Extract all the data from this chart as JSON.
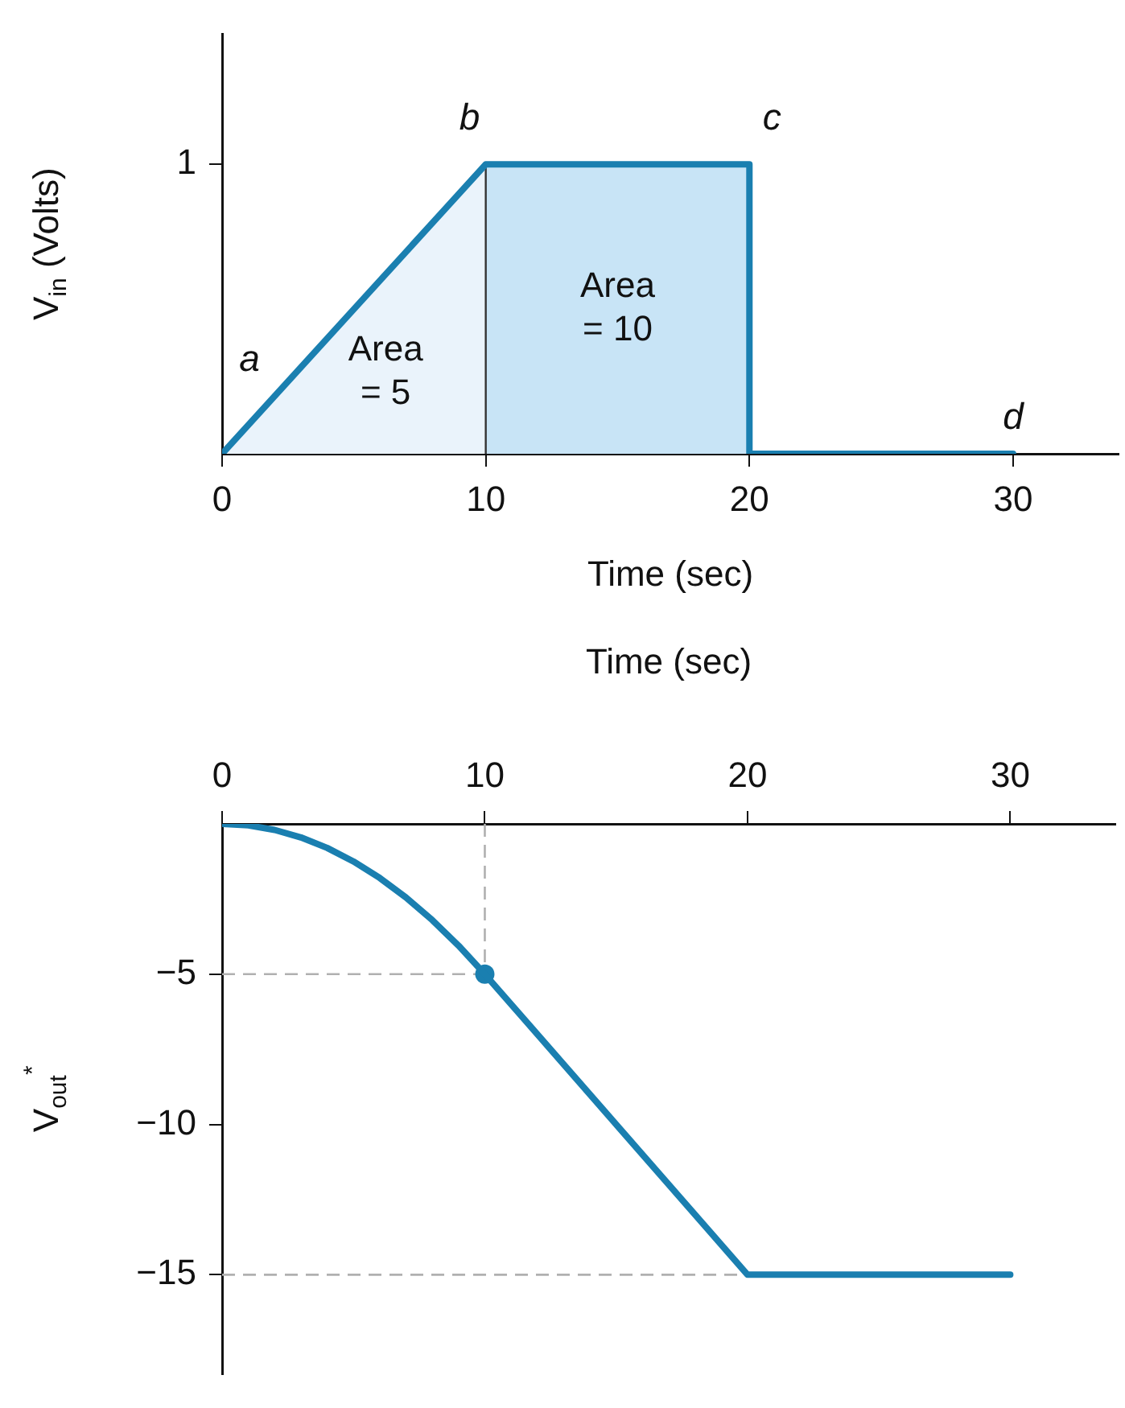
{
  "chart_data": [
    {
      "type": "line",
      "xlabel": "Time (sec)",
      "ylabel": "V$_{in}$ (Volts)",
      "xlim": [
        0,
        34
      ],
      "ylim": [
        0,
        1.45
      ],
      "xticks": [
        0,
        10,
        20,
        30
      ],
      "yticks": [
        1
      ],
      "grid": false,
      "legend": false,
      "marker": "none",
      "series": [
        {
          "type": "area",
          "name": "Area\n= 5",
          "color": "#eaf3fb",
          "x": [
            0,
            10,
            10
          ],
          "values": [
            0,
            1,
            0
          ]
        },
        {
          "type": "area",
          "name": "Area\n= 10",
          "color": "#c8e4f6",
          "x": [
            10,
            20
          ],
          "values": [
            1,
            1
          ]
        },
        {
          "color": "#1a7fb0",
          "x": [
            0,
            10,
            20,
            20,
            30
          ],
          "values": [
            0,
            1,
            1,
            0,
            0
          ]
        }
      ],
      "annotations": [
        {
          "text": "a",
          "x": 0,
          "y": 0
        },
        {
          "text": "b",
          "x": 10,
          "y": 1
        },
        {
          "text": "c",
          "x": 20,
          "y": 1
        },
        {
          "text": "d",
          "x": 30,
          "y": 0
        }
      ]
    },
    {
      "type": "line",
      "xlabel": "Time (sec)",
      "ylabel": "V$_{out}$$^{*}$",
      "xlim": [
        0,
        34
      ],
      "ylim": [
        -18.3,
        0
      ],
      "xticks": [
        0,
        10,
        20,
        30
      ],
      "yticks": [
        -5,
        -10,
        -15
      ],
      "grid": false,
      "legend": false,
      "marker": "none",
      "series": [
        {
          "color": "#1a7fb0",
          "x": [
            0,
            1,
            2,
            3,
            4,
            5,
            6,
            7,
            8,
            9,
            10,
            20,
            30
          ],
          "values": [
            0,
            -0.05,
            -0.2,
            -0.45,
            -0.8,
            -1.25,
            -1.8,
            -2.45,
            -3.2,
            -4.05,
            -5,
            -15,
            -15
          ]
        },
        {
          "type": "scatter",
          "color": "#1a7fb0",
          "x": [
            10
          ],
          "values": [
            -5
          ],
          "marker": "circle"
        }
      ],
      "ref_lines": [
        {
          "axis": "x",
          "value": 10,
          "line_style": "dashed",
          "color": "#b0b0b0"
        },
        {
          "axis": "y",
          "value": -5,
          "line_style": "dashed",
          "color": "#b0b0b0"
        },
        {
          "axis": "y",
          "value": -15,
          "line_style": "dashed",
          "color": "#b0b0b0"
        }
      ]
    }
  ]
}
